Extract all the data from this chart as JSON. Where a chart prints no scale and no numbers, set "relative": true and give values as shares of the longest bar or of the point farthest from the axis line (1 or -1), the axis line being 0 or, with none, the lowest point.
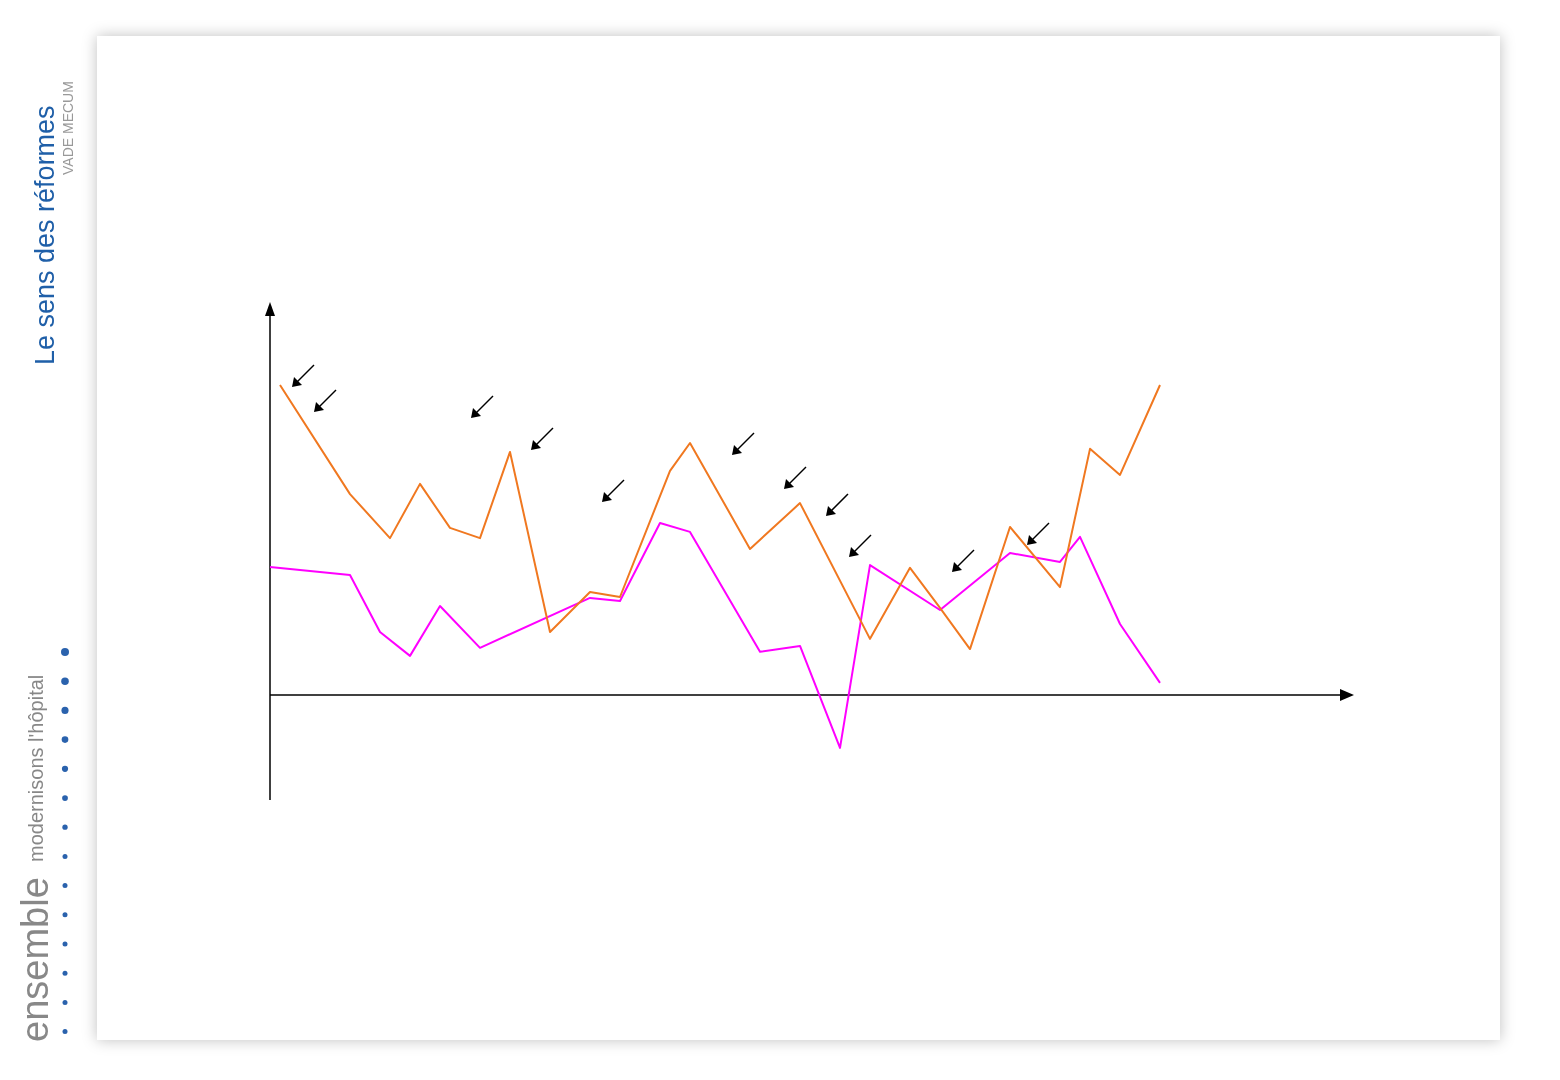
{
  "chart_data": {
    "type": "line",
    "relative": true,
    "categories": [
      null,
      null,
      null,
      null,
      null,
      null,
      null,
      null,
      null,
      null,
      null,
      null,
      null,
      null,
      null,
      null,
      null,
      null,
      null,
      null,
      null,
      null,
      null,
      null,
      null,
      null,
      null,
      null,
      null,
      null,
      null,
      null,
      null,
      null,
      null,
      null,
      null,
      null,
      null,
      null,
      null,
      null,
      null,
      null,
      null,
      null,
      null,
      null,
      null,
      null,
      null,
      null,
      null,
      null,
      null,
      null,
      null,
      null,
      null,
      null,
      null,
      null,
      null,
      null,
      null,
      null,
      null,
      null,
      null,
      null,
      null,
      null,
      null,
      null,
      null,
      null,
      null,
      null,
      null,
      null,
      null,
      null,
      null,
      null,
      null,
      null,
      null,
      null,
      null,
      null,
      null,
      null,
      null,
      null,
      null,
      null,
      null,
      null,
      null,
      null,
      null,
      null,
      null,
      null,
      null,
      null,
      null,
      null
    ],
    "series": [
      {
        "color": "#f07820",
        "values": [
          null,
          1.0,
          null,
          null,
          null,
          null,
          null,
          null,
          0.648,
          null,
          null,
          null,
          0.506,
          null,
          null,
          0.681,
          null,
          null,
          0.539,
          null,
          null,
          0.506,
          null,
          null,
          0.784,
          null,
          null,
          null,
          0.203,
          null,
          null,
          null,
          0.332,
          null,
          null,
          0.316,
          null,
          null,
          null,
          null,
          0.723,
          null,
          0.813,
          null,
          null,
          null,
          null,
          null,
          0.471,
          null,
          null,
          null,
          null,
          0.619,
          null,
          null,
          null,
          null,
          null,
          null,
          0.181,
          null,
          null,
          null,
          0.41,
          null,
          null,
          0.281,
          null,
          null,
          0.148,
          null,
          null,
          null,
          0.542,
          null,
          null,
          null,
          null,
          0.348,
          null,
          null,
          0.794,
          null,
          null,
          0.71,
          null,
          null,
          null,
          1.0,
          null,
          null,
          null,
          null,
          null,
          null,
          null,
          null,
          null,
          null,
          null,
          null,
          null,
          null,
          null,
          null,
          null,
          null
        ]
      },
      {
        "color": "#ff00ff",
        "values": [
          0.413,
          null,
          null,
          null,
          null,
          null,
          null,
          null,
          0.387,
          null,
          null,
          0.203,
          null,
          null,
          0.126,
          null,
          null,
          0.287,
          null,
          null,
          null,
          0.152,
          null,
          null,
          null,
          null,
          null,
          null,
          null,
          null,
          null,
          null,
          0.313,
          null,
          null,
          0.303,
          null,
          null,
          null,
          0.555,
          null,
          null,
          0.526,
          null,
          null,
          null,
          null,
          null,
          null,
          0.139,
          null,
          null,
          null,
          0.158,
          null,
          null,
          null,
          -0.171,
          null,
          null,
          0.419,
          null,
          null,
          null,
          null,
          null,
          null,
          0.274,
          null,
          null,
          null,
          null,
          null,
          null,
          0.458,
          null,
          null,
          null,
          null,
          0.429,
          null,
          0.51,
          null,
          null,
          null,
          0.229,
          null,
          null,
          null,
          0.039,
          null,
          null,
          null,
          null,
          null,
          null,
          null,
          null,
          null,
          null,
          null,
          null,
          null,
          null,
          null,
          null,
          null,
          null
        ]
      }
    ],
    "annotations": [
      "Le sens des réformes",
      "VADE MECUM",
      "ensemble",
      "modernisons l'hôpital"
    ]
  }
}
